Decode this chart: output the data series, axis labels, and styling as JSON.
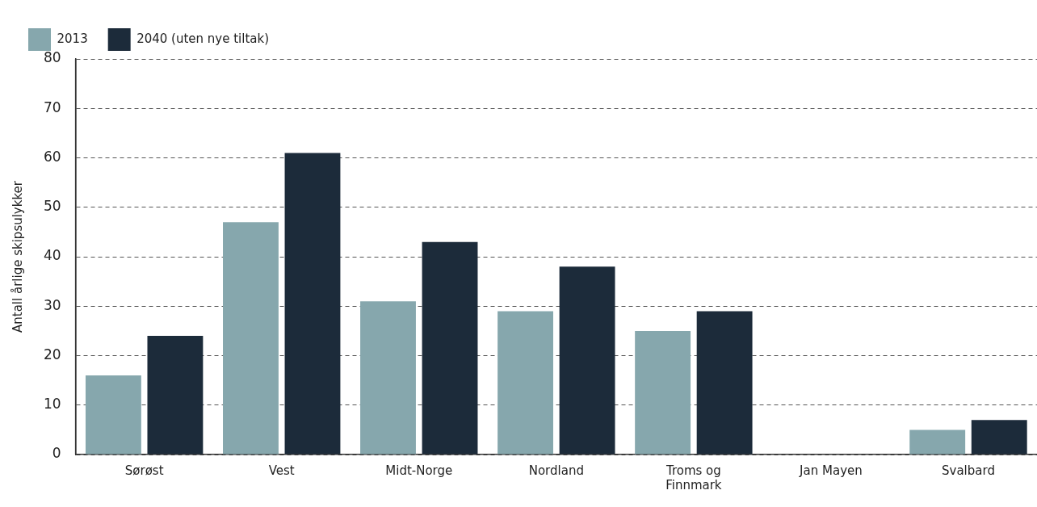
{
  "chart_data": {
    "type": "bar",
    "ylabel": "Antall årlige skipsulykker",
    "categories": [
      "Sørøst",
      "Vest",
      "Midt-Norge",
      "Nordland",
      "Troms og Finnmark",
      "Jan Mayen",
      "Svalbard"
    ],
    "series": [
      {
        "name": "2013",
        "color": "#86a7ad",
        "values": [
          16,
          47,
          31,
          29,
          25,
          0,
          5
        ]
      },
      {
        "name": "2040 (uten nye tiltak)",
        "color": "#1c2b3a",
        "values": [
          24,
          61,
          43,
          38,
          29,
          0,
          7
        ]
      }
    ],
    "ylim": [
      0,
      80
    ],
    "yticks": [
      0,
      10,
      20,
      30,
      40,
      50,
      60,
      70,
      80
    ],
    "grid": "y",
    "legend": "top left"
  }
}
